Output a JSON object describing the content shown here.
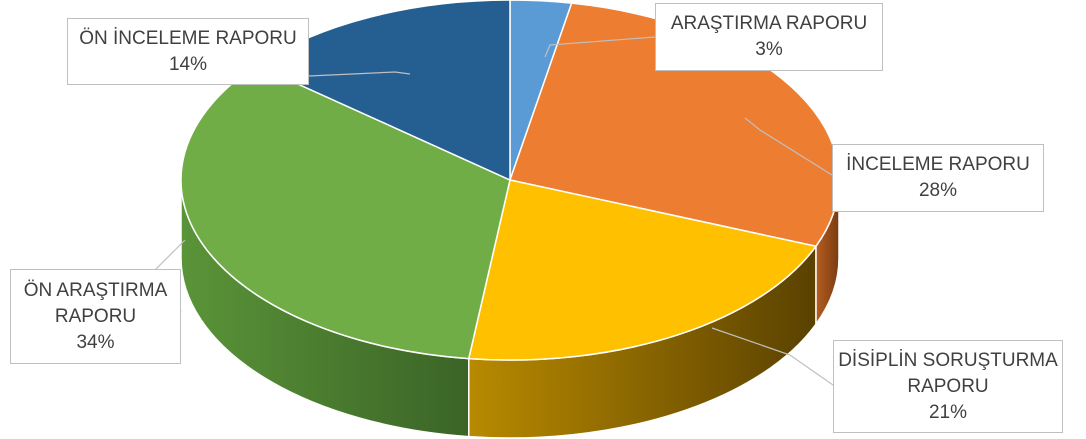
{
  "chart_data": {
    "type": "pie",
    "style": "3d",
    "title": "",
    "slices": [
      {
        "label": "ARAŞTIRMA RAPORU",
        "percent_label": "3%",
        "value": 3,
        "color": "#5b9bd5"
      },
      {
        "label": "İNCELEME RAPORU",
        "percent_label": "28%",
        "value": 28,
        "color": "#ed7d31"
      },
      {
        "label": "DİSİPLİN SORUŞTURMA RAPORU",
        "percent_label": "21%",
        "value": 21,
        "color": "#ffc000"
      },
      {
        "label": "ÖN ARAŞTIRMA RAPORU",
        "percent_label": "34%",
        "value": 34,
        "color": "#70ad47"
      },
      {
        "label": "ÖN İNCELEME RAPORU",
        "percent_label": "14%",
        "value": 14,
        "color": "#255e91"
      }
    ],
    "label_lines": {
      "l0": [
        "ARAŞTIRMA RAPORU"
      ],
      "l1": [
        "İNCELEME RAPORU"
      ],
      "l2": [
        "DİSİPLİN SORUŞTURMA",
        "RAPORU"
      ],
      "l3": [
        "ÖN ARAŞTIRMA",
        "RAPORU"
      ],
      "l4": [
        "ÖN İNCELEME RAPORU"
      ]
    },
    "legend": "none",
    "data_labels": "outside-with-leader-lines"
  }
}
